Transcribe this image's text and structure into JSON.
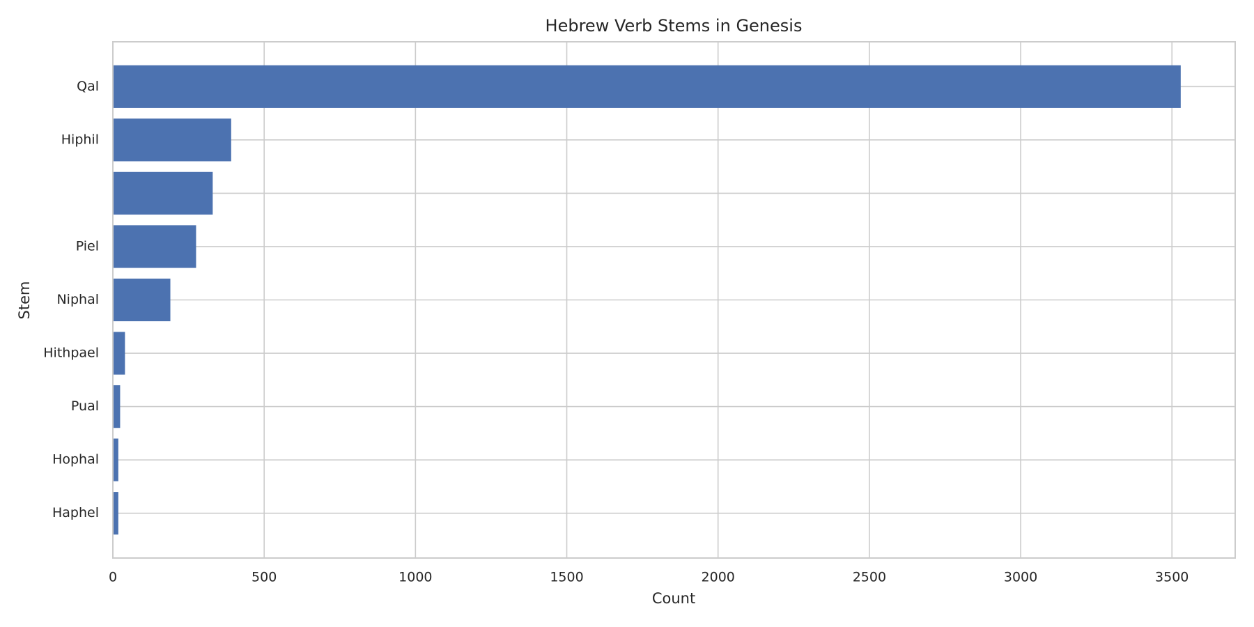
{
  "chart_data": {
    "type": "barh",
    "title": "Hebrew Verb Stems in Genesis",
    "x_label": "Count",
    "y_label": "Stem",
    "categories": [
      "Qal",
      "Hiphil",
      null,
      "Piel",
      "Niphal",
      "Hithpael",
      "Pual",
      "Hophal",
      "Haphel"
    ],
    "values": [
      3529,
      391,
      330,
      275,
      190,
      40,
      24,
      18,
      18
    ],
    "color": "#4c72b0",
    "xlim": [
      0,
      3709
    ],
    "xticks": [
      0,
      500,
      1000,
      1500,
      2000,
      2500,
      3000,
      3500
    ],
    "grid": true
  }
}
